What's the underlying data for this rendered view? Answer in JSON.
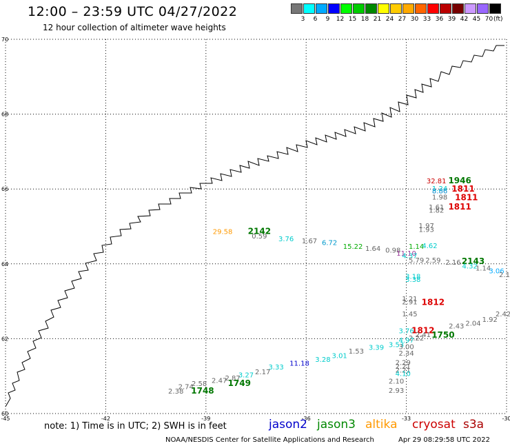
{
  "title": "12:00 – 23:59 UTC 04/27/2022",
  "subtitle": "12 hour collection of altimeter wave heights",
  "colorbar": {
    "colors": [
      "#777777",
      "#00ffff",
      "#00aaff",
      "#0000ff",
      "#00ff00",
      "#00cc00",
      "#008800",
      "#ffff00",
      "#ffcc00",
      "#ffaa00",
      "#ff6600",
      "#ff0000",
      "#bb0000",
      "#770000",
      "#cc99ff",
      "#9966ff",
      "#000000"
    ],
    "labels": [
      "3",
      "6",
      "9",
      "12",
      "15",
      "18",
      "21",
      "24",
      "27",
      "30",
      "33",
      "36",
      "39",
      "42",
      "45",
      "70"
    ],
    "unit": "(ft)"
  },
  "axes": {
    "x_ticks": [
      "-45",
      "-42",
      "-39",
      "-36",
      "-33",
      "-30"
    ],
    "y_ticks": [
      "70",
      "68",
      "66",
      "64",
      "62",
      "60"
    ]
  },
  "observations": [
    {
      "text": "32.81",
      "lon": -32.1,
      "lat": 66.15,
      "color": "#cc0000"
    },
    {
      "text": "1946",
      "lon": -31.4,
      "lat": 66.15,
      "color": "#007700",
      "type": "time"
    },
    {
      "text": "1.24",
      "lon": -32.0,
      "lat": 65.95,
      "color": "#00cccc"
    },
    {
      "text": "8.86",
      "lon": -32.0,
      "lat": 65.88,
      "color": "#0088cc"
    },
    {
      "text": "1811",
      "lon": -31.3,
      "lat": 65.93,
      "color": "#dd0000",
      "type": "time"
    },
    {
      "text": "1.98",
      "lon": -32.0,
      "lat": 65.72,
      "color": "#666666"
    },
    {
      "text": "1811",
      "lon": -31.2,
      "lat": 65.7,
      "color": "#dd0000",
      "type": "time"
    },
    {
      "text": "1.61",
      "lon": -32.1,
      "lat": 65.45,
      "color": "#666666"
    },
    {
      "text": "1811",
      "lon": -31.4,
      "lat": 65.45,
      "color": "#dd0000",
      "type": "time"
    },
    {
      "text": "1.82",
      "lon": -32.1,
      "lat": 65.37,
      "color": "#666666"
    },
    {
      "text": "1.97",
      "lon": -32.4,
      "lat": 64.95,
      "color": "#666666"
    },
    {
      "text": "1.93",
      "lon": -32.4,
      "lat": 64.85,
      "color": "#666666"
    },
    {
      "text": "29.58",
      "lon": -38.5,
      "lat": 64.8,
      "color": "#ff9900"
    },
    {
      "text": "2142",
      "lon": -37.4,
      "lat": 64.8,
      "color": "#007700",
      "type": "time"
    },
    {
      "text": "0.59",
      "lon": -37.4,
      "lat": 64.68,
      "color": "#666666"
    },
    {
      "text": "3.76",
      "lon": -36.6,
      "lat": 64.6,
      "color": "#00cccc"
    },
    {
      "text": "1.67",
      "lon": -35.9,
      "lat": 64.55,
      "color": "#666666"
    },
    {
      "text": "6.72",
      "lon": -35.3,
      "lat": 64.5,
      "color": "#0099cc"
    },
    {
      "text": "15.22",
      "lon": -34.6,
      "lat": 64.4,
      "color": "#00aa00"
    },
    {
      "text": "1.64",
      "lon": -34.0,
      "lat": 64.35,
      "color": "#666666"
    },
    {
      "text": "0.98",
      "lon": -33.4,
      "lat": 64.3,
      "color": "#666666"
    },
    {
      "text": "11.10",
      "lon": -33.0,
      "lat": 64.22,
      "color": "#993399"
    },
    {
      "text": "1.14",
      "lon": -32.7,
      "lat": 64.4,
      "color": "#00aa00"
    },
    {
      "text": "4.62",
      "lon": -32.3,
      "lat": 64.42,
      "color": "#00cccc"
    },
    {
      "text": "4.37",
      "lon": -32.9,
      "lat": 64.15,
      "color": "#00cccc"
    },
    {
      "text": "5.79",
      "lon": -32.7,
      "lat": 64.03,
      "color": "#666666"
    },
    {
      "text": "2.59",
      "lon": -32.2,
      "lat": 64.03,
      "color": "#666666"
    },
    {
      "text": "2.16",
      "lon": -31.6,
      "lat": 63.98,
      "color": "#666666"
    },
    {
      "text": "2143",
      "lon": -31.0,
      "lat": 64.0,
      "color": "#007700",
      "type": "time"
    },
    {
      "text": "4.32",
      "lon": -31.1,
      "lat": 63.88,
      "color": "#00cccc"
    },
    {
      "text": "1.14",
      "lon": -30.7,
      "lat": 63.82,
      "color": "#666666"
    },
    {
      "text": "3.06",
      "lon": -30.3,
      "lat": 63.75,
      "color": "#00aaff"
    },
    {
      "text": "2.1",
      "lon": -29.8,
      "lat": 63.65,
      "color": "#666666"
    },
    {
      "text": "3.18",
      "lon": -32.8,
      "lat": 63.6,
      "color": "#00cccc"
    },
    {
      "text": "3.38",
      "lon": -32.8,
      "lat": 63.52,
      "color": "#00cccc"
    },
    {
      "text": "1.21",
      "lon": -32.9,
      "lat": 63.0,
      "color": "#666666"
    },
    {
      "text": "2.91",
      "lon": -32.9,
      "lat": 62.92,
      "color": "#666666"
    },
    {
      "text": "1812",
      "lon": -32.2,
      "lat": 62.9,
      "color": "#dd0000",
      "type": "time"
    },
    {
      "text": "1.45",
      "lon": -32.9,
      "lat": 62.6,
      "color": "#666666"
    },
    {
      "text": "2.42",
      "lon": -30.1,
      "lat": 62.6,
      "color": "#666666"
    },
    {
      "text": "1.92",
      "lon": -30.5,
      "lat": 62.45,
      "color": "#666666"
    },
    {
      "text": "2.04",
      "lon": -31.0,
      "lat": 62.35,
      "color": "#666666"
    },
    {
      "text": "2.43",
      "lon": -31.5,
      "lat": 62.27,
      "color": "#666666"
    },
    {
      "text": "3.76",
      "lon": -33.0,
      "lat": 62.15,
      "color": "#00cccc"
    },
    {
      "text": "1812",
      "lon": -32.5,
      "lat": 62.15,
      "color": "#dd0000",
      "type": "time"
    },
    {
      "text": "2.41",
      "lon": -32.5,
      "lat": 62.04,
      "color": "#666666"
    },
    {
      "text": "1750",
      "lon": -31.9,
      "lat": 62.03,
      "color": "#007700",
      "type": "time"
    },
    {
      "text": "2.22",
      "lon": -32.7,
      "lat": 61.95,
      "color": "#666666"
    },
    {
      "text": "4.97",
      "lon": -33.0,
      "lat": 61.9,
      "color": "#00cccc"
    },
    {
      "text": "3.53",
      "lon": -33.3,
      "lat": 61.78,
      "color": "#00cccc"
    },
    {
      "text": "3.00",
      "lon": -33.0,
      "lat": 61.72,
      "color": "#666666"
    },
    {
      "text": "3.39",
      "lon": -33.9,
      "lat": 61.7,
      "color": "#00cccc"
    },
    {
      "text": "1.53",
      "lon": -34.5,
      "lat": 61.6,
      "color": "#666666"
    },
    {
      "text": "2.34",
      "lon": -33.0,
      "lat": 61.55,
      "color": "#666666"
    },
    {
      "text": "3.01",
      "lon": -35.0,
      "lat": 61.48,
      "color": "#00cccc"
    },
    {
      "text": "3.28",
      "lon": -35.5,
      "lat": 61.38,
      "color": "#00cccc"
    },
    {
      "text": "2.29",
      "lon": -33.1,
      "lat": 61.3,
      "color": "#666666"
    },
    {
      "text": "11.18",
      "lon": -36.2,
      "lat": 61.28,
      "color": "#0000cc"
    },
    {
      "text": "2.21",
      "lon": -33.1,
      "lat": 61.2,
      "color": "#666666"
    },
    {
      "text": "3.33",
      "lon": -36.9,
      "lat": 61.18,
      "color": "#00cccc"
    },
    {
      "text": "2.21",
      "lon": -33.1,
      "lat": 61.1,
      "color": "#666666"
    },
    {
      "text": "4.10",
      "lon": -33.1,
      "lat": 61.0,
      "color": "#00cccc"
    },
    {
      "text": "2.17",
      "lon": -37.3,
      "lat": 61.05,
      "color": "#666666"
    },
    {
      "text": "3.27",
      "lon": -37.8,
      "lat": 60.97,
      "color": "#00cccc"
    },
    {
      "text": "2.87",
      "lon": -38.2,
      "lat": 60.88,
      "color": "#666666"
    },
    {
      "text": "2.10",
      "lon": -33.3,
      "lat": 60.8,
      "color": "#666666"
    },
    {
      "text": "2.47",
      "lon": -38.6,
      "lat": 60.82,
      "color": "#666666"
    },
    {
      "text": "1749",
      "lon": -38.0,
      "lat": 60.74,
      "color": "#007700",
      "type": "time"
    },
    {
      "text": "2.58",
      "lon": -39.2,
      "lat": 60.74,
      "color": "#666666"
    },
    {
      "text": "2.74",
      "lon": -39.6,
      "lat": 60.65,
      "color": "#666666"
    },
    {
      "text": "2.93",
      "lon": -33.3,
      "lat": 60.55,
      "color": "#666666"
    },
    {
      "text": "2.38",
      "lon": -39.9,
      "lat": 60.53,
      "color": "#666666"
    },
    {
      "text": "1748",
      "lon": -39.1,
      "lat": 60.53,
      "color": "#007700",
      "type": "time"
    }
  ],
  "note": "note: 1) Time is in UTC; 2) SWH is in feet",
  "legend": [
    {
      "label": "jason2",
      "color": "#0000cc"
    },
    {
      "label": "jason3",
      "color": "#008800"
    },
    {
      "label": "altika",
      "color": "#ff9900"
    },
    {
      "label": "cryosat",
      "color": "#cc0000"
    },
    {
      "label": "s3a",
      "color": "#aa0000"
    }
  ],
  "footer": "NOAA/NESDIS Center for Satellite Applications and Research",
  "footer_date": "Apr 29 08:29:58 UTC 2022"
}
